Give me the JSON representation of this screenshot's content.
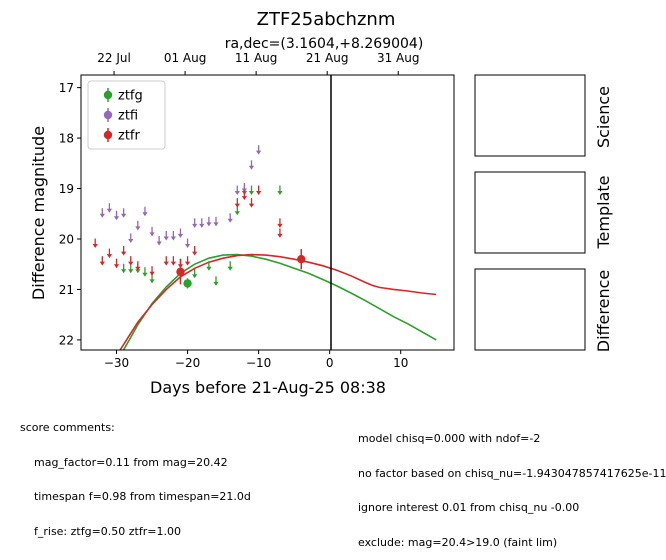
{
  "chart_data": {
    "type": "scatter",
    "title": "ZTF25abchznm",
    "subtitle": "ra,dec=(3.1604,+8.269004)",
    "xlabel": "Days before 21-Aug-25 08:38",
    "ylabel": "Difference magnitude",
    "xlim": [
      -35,
      17.5
    ],
    "ylim": [
      22.2,
      16.75
    ],
    "y_inverted": true,
    "x_ticks": [
      -30,
      -20,
      -10,
      0,
      10
    ],
    "y_ticks": [
      17,
      18,
      19,
      20,
      21,
      22
    ],
    "top_axis_ticks": [
      {
        "label": "22 Jul",
        "x": -30.35
      },
      {
        "label": "01 Aug",
        "x": -20.35
      },
      {
        "label": "11 Aug",
        "x": -10.35
      },
      {
        "label": "21 Aug",
        "x": -0.35
      },
      {
        "label": "31 Aug",
        "x": 9.65
      }
    ],
    "vline_x": 0,
    "legend": {
      "placement": "top-left",
      "entries": [
        "ztfg",
        "ztfi",
        "ztfr"
      ]
    },
    "colors": {
      "ztfg": "#2ca02c",
      "ztfi": "#9467bd",
      "ztfr": "#d62728"
    },
    "series": [
      {
        "name": "ztfg",
        "upper_limits": [
          {
            "x": -29,
            "y": 20.55
          },
          {
            "x": -28,
            "y": 20.55
          },
          {
            "x": -27,
            "y": 20.55
          },
          {
            "x": -26,
            "y": 20.62
          },
          {
            "x": -25,
            "y": 20.75
          },
          {
            "x": -19,
            "y": 20.65
          },
          {
            "x": -17,
            "y": 20.5
          },
          {
            "x": -16,
            "y": 20.8
          },
          {
            "x": -14,
            "y": 20.5
          },
          {
            "x": -13,
            "y": 19.4
          },
          {
            "x": -12,
            "y": 19.0
          },
          {
            "x": -11,
            "y": 19.0
          },
          {
            "x": -7,
            "y": 19.0
          }
        ],
        "detections": [
          {
            "x": -20,
            "y": 20.88,
            "err": 0.1
          }
        ]
      },
      {
        "name": "ztfi",
        "upper_limits": [
          {
            "x": -32,
            "y": 19.45
          },
          {
            "x": -31,
            "y": 19.35
          },
          {
            "x": -30,
            "y": 19.5
          },
          {
            "x": -29,
            "y": 19.45
          },
          {
            "x": -28,
            "y": 19.95
          },
          {
            "x": -27,
            "y": 19.7
          },
          {
            "x": -26,
            "y": 19.42
          },
          {
            "x": -25,
            "y": 19.82
          },
          {
            "x": -24,
            "y": 20.0
          },
          {
            "x": -23,
            "y": 19.9
          },
          {
            "x": -22,
            "y": 19.9
          },
          {
            "x": -21,
            "y": 19.85
          },
          {
            "x": -20,
            "y": 20.05
          },
          {
            "x": -19,
            "y": 19.65
          },
          {
            "x": -18,
            "y": 19.65
          },
          {
            "x": -17,
            "y": 19.62
          },
          {
            "x": -16,
            "y": 19.62
          },
          {
            "x": -14,
            "y": 19.55
          },
          {
            "x": -13,
            "y": 19.0
          },
          {
            "x": -12,
            "y": 18.95
          },
          {
            "x": -11,
            "y": 18.5
          },
          {
            "x": -10,
            "y": 18.2
          }
        ],
        "detections": []
      },
      {
        "name": "ztfr",
        "upper_limits": [
          {
            "x": -33,
            "y": 20.05
          },
          {
            "x": -32,
            "y": 20.4
          },
          {
            "x": -31,
            "y": 20.25
          },
          {
            "x": -30,
            "y": 20.45
          },
          {
            "x": -29,
            "y": 20.2
          },
          {
            "x": -28,
            "y": 20.4
          },
          {
            "x": -27,
            "y": 20.5
          },
          {
            "x": -25,
            "y": 20.6
          },
          {
            "x": -23,
            "y": 20.4
          },
          {
            "x": -22,
            "y": 20.4
          },
          {
            "x": -21,
            "y": 20.45
          },
          {
            "x": -20,
            "y": 20.4
          },
          {
            "x": -19,
            "y": 20.2
          },
          {
            "x": -13,
            "y": 19.25
          },
          {
            "x": -12,
            "y": 19.1
          },
          {
            "x": -11,
            "y": 19.25
          },
          {
            "x": -10,
            "y": 19.0
          },
          {
            "x": -7,
            "y": 19.65
          },
          {
            "x": -7,
            "y": 19.85
          }
        ],
        "detections": [
          {
            "x": -21,
            "y": 20.65,
            "err": 0.25
          },
          {
            "x": -4,
            "y": 20.4,
            "err": 0.2
          }
        ]
      }
    ],
    "model_curves": [
      {
        "name": "ztfg",
        "points": [
          [
            -29,
            22.2
          ],
          [
            -27,
            21.7
          ],
          [
            -25,
            21.28
          ],
          [
            -23,
            20.95
          ],
          [
            -21,
            20.68
          ],
          [
            -19,
            20.5
          ],
          [
            -17,
            20.38
          ],
          [
            -15,
            20.32
          ],
          [
            -13,
            20.31
          ],
          [
            -11,
            20.34
          ],
          [
            -9,
            20.4
          ],
          [
            -7,
            20.48
          ],
          [
            -5,
            20.58
          ],
          [
            -3,
            20.68
          ],
          [
            -1,
            20.8
          ],
          [
            1,
            20.93
          ],
          [
            3,
            21.07
          ],
          [
            5,
            21.22
          ],
          [
            7,
            21.38
          ],
          [
            9,
            21.54
          ],
          [
            11,
            21.68
          ],
          [
            13,
            21.84
          ],
          [
            15,
            22.0
          ]
        ]
      },
      {
        "name": "ztfr",
        "points": [
          [
            -29.5,
            22.2
          ],
          [
            -27,
            21.65
          ],
          [
            -25,
            21.3
          ],
          [
            -23,
            21.0
          ],
          [
            -21,
            20.75
          ],
          [
            -19,
            20.58
          ],
          [
            -17,
            20.46
          ],
          [
            -15,
            20.38
          ],
          [
            -13,
            20.33
          ],
          [
            -11,
            20.31
          ],
          [
            -9,
            20.32
          ],
          [
            -7,
            20.35
          ],
          [
            -5,
            20.4
          ],
          [
            -3,
            20.46
          ],
          [
            -1,
            20.53
          ],
          [
            1,
            20.62
          ],
          [
            3,
            20.73
          ],
          [
            5,
            20.86
          ],
          [
            6,
            20.92
          ],
          [
            7,
            20.96
          ],
          [
            9,
            21.0
          ],
          [
            11,
            21.03
          ],
          [
            13,
            21.07
          ],
          [
            15,
            21.1
          ]
        ]
      }
    ]
  },
  "side_panels": [
    "Science",
    "Template",
    "Difference"
  ],
  "comments_left": [
    "score comments:",
    "    mag_factor=0.11 from mag=20.42",
    "    timespan f=0.98 from timespan=21.0d",
    "    f_rise: ztfg=0.50 ztfr=1.00"
  ],
  "comments_right": [
    "model chisq=0.000 with ndof=-2",
    "no factor based on chisq_nu=-1.943047857417625e-11",
    "ignore interest 0.01 from chisq_nu -0.00",
    "exclude: mag=20.4>19.0 (faint lim)"
  ]
}
